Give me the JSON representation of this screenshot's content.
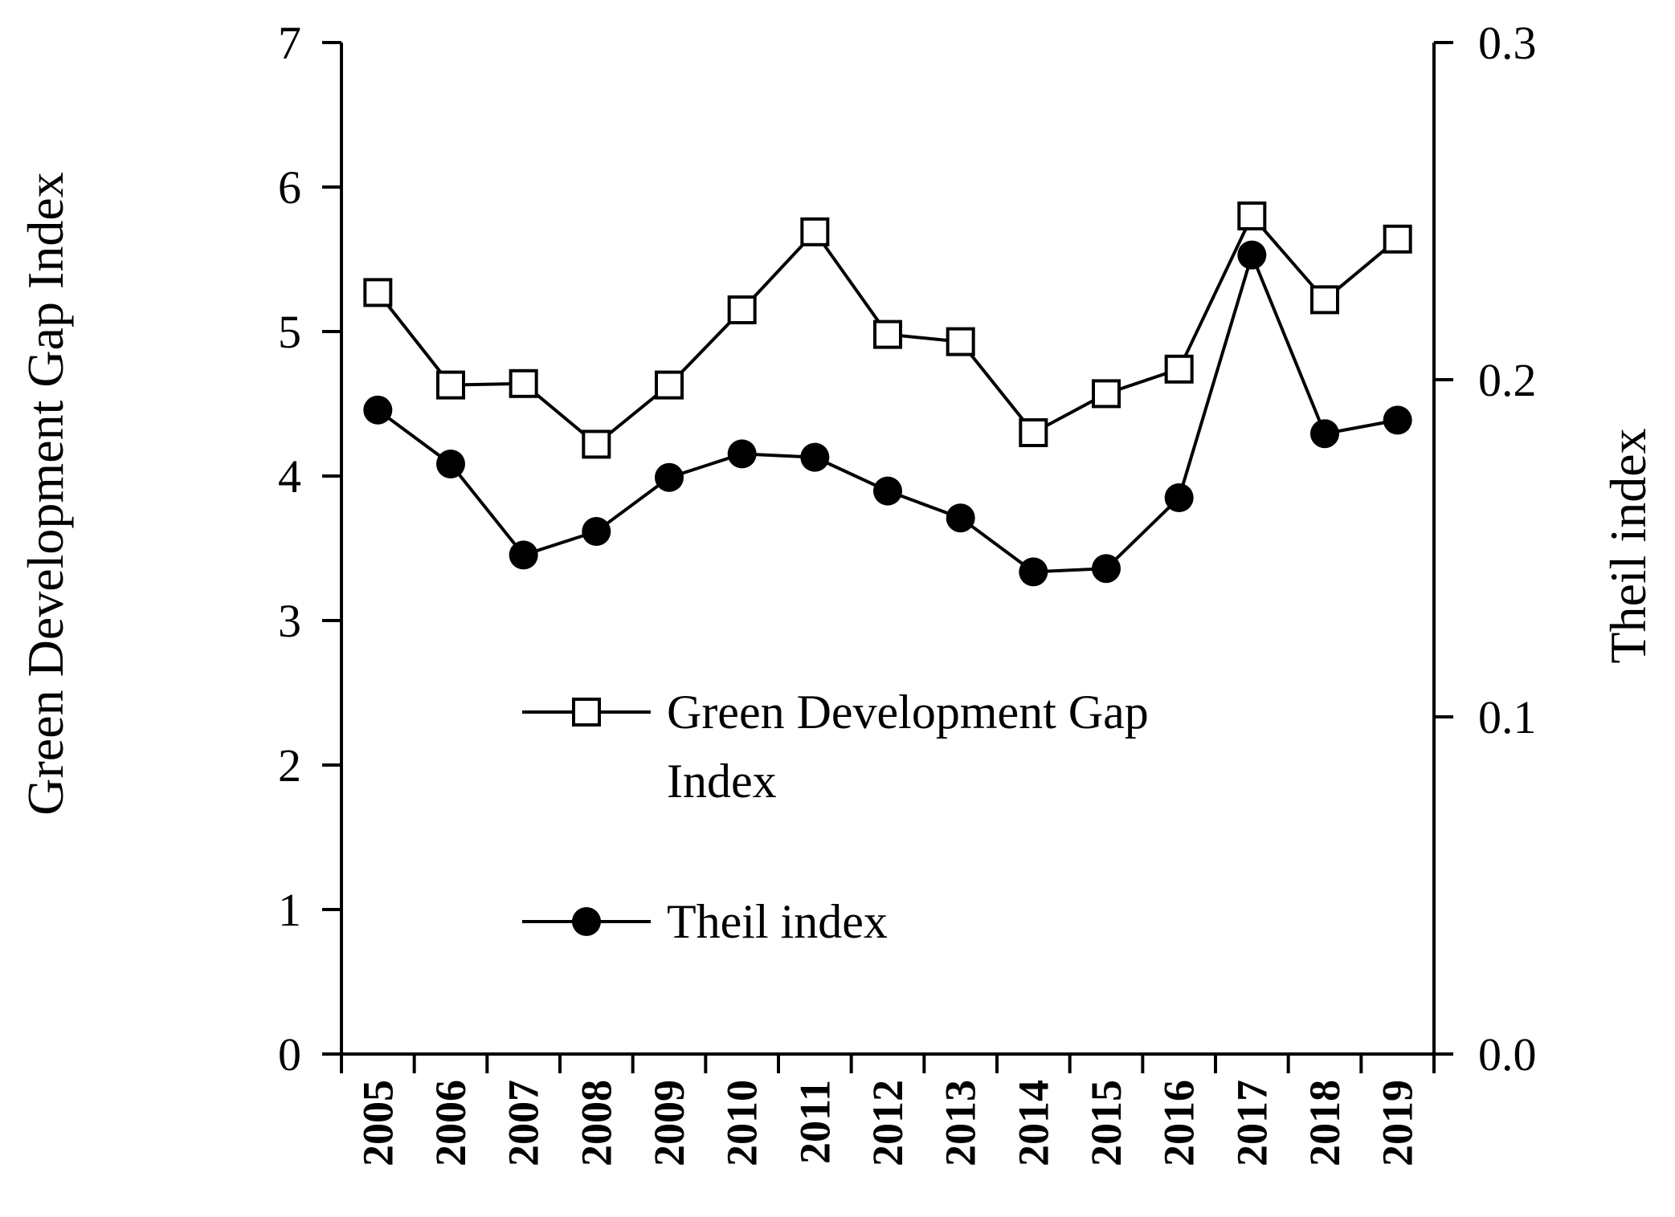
{
  "chart_data": {
    "type": "line",
    "title": "",
    "xlabel": "",
    "ylabel": "Green Development Gap Index",
    "y2label": "Theil index",
    "ylim": [
      0,
      7
    ],
    "y2lim": [
      0.0,
      0.3
    ],
    "categories": [
      "2005",
      "2006",
      "2007",
      "2008",
      "2009",
      "2010",
      "2011",
      "2012",
      "2013",
      "2014",
      "2015",
      "2016",
      "2017",
      "2018",
      "2019"
    ],
    "y_ticks": [
      "0",
      "1",
      "2",
      "3",
      "4",
      "5",
      "6",
      "7"
    ],
    "y_tick_values": [
      0,
      1,
      2,
      3,
      4,
      5,
      6,
      7
    ],
    "y2_ticks": [
      "0.0",
      "0.1",
      "0.2",
      "0.3"
    ],
    "y2_tick_values": [
      0.0,
      0.1,
      0.2,
      0.3
    ],
    "series": [
      {
        "name": "Green Development Gap Index",
        "legend_line1": "Green Development Gap",
        "legend_line2": "Index",
        "axis": "left",
        "marker": "open-square",
        "values": [
          5.27,
          4.63,
          4.64,
          4.22,
          4.63,
          5.15,
          5.69,
          4.98,
          4.93,
          4.3,
          4.57,
          4.74,
          5.8,
          5.22,
          5.64
        ]
      },
      {
        "name": "Theil index",
        "legend_line1": "Theil index",
        "axis": "right",
        "marker": "filled-circle",
        "values": [
          0.191,
          0.175,
          0.148,
          0.155,
          0.171,
          0.178,
          0.177,
          0.167,
          0.159,
          0.143,
          0.144,
          0.165,
          0.237,
          0.184,
          0.188
        ]
      }
    ],
    "grid": false,
    "legend_position": "center-left inside"
  }
}
